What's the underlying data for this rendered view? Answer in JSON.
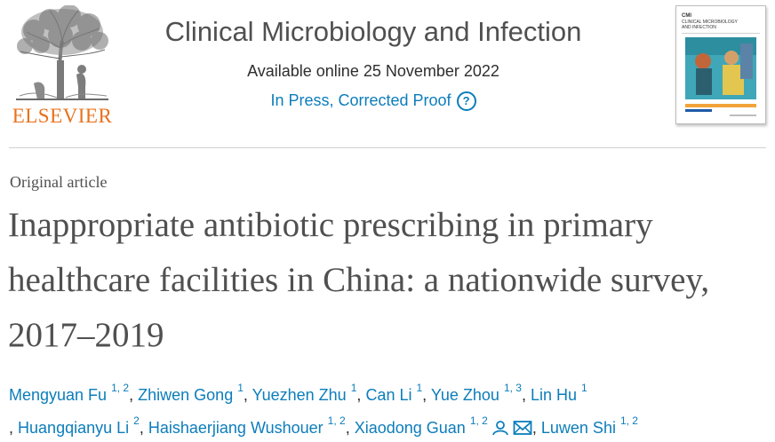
{
  "publisher": {
    "name": "ELSEVIER",
    "logo_icon": "elsevier-tree-icon",
    "brand_color": "#e9711c"
  },
  "journal": {
    "title": "Clinical Microbiology and Infection",
    "available": "Available online 25 November 2022",
    "status": "In Press, Corrected Proof",
    "help_symbol": "?",
    "cover": {
      "abbrev": "CMI",
      "line1": "CLINICAL MICROBIOLOGY",
      "line2": "AND INFECTION"
    }
  },
  "article": {
    "type": "Original article",
    "title": "Inappropriate antibiotic prescribing in primary healthcare facilities in China: a nationwide survey, 2017–2019",
    "authors": [
      {
        "name": "Mengyuan Fu",
        "aff": "1, 2"
      },
      {
        "name": "Zhiwen Gong",
        "aff": "1"
      },
      {
        "name": "Yuezhen Zhu",
        "aff": "1"
      },
      {
        "name": "Can Li",
        "aff": "1"
      },
      {
        "name": "Yue Zhou",
        "aff": "1, 3"
      },
      {
        "name": "Lin Hu",
        "aff": "1"
      },
      {
        "name": "Huangqianyu Li",
        "aff": "2"
      },
      {
        "name": "Haishaerjiang Wushouer",
        "aff": "1, 2"
      },
      {
        "name": "Xiaodong Guan",
        "aff": "1, 2"
      },
      {
        "name": "Luwen Shi",
        "aff": "1, 2"
      }
    ],
    "separator": ","
  },
  "colors": {
    "link": "#0c7dbb",
    "title_text": "#505050"
  }
}
